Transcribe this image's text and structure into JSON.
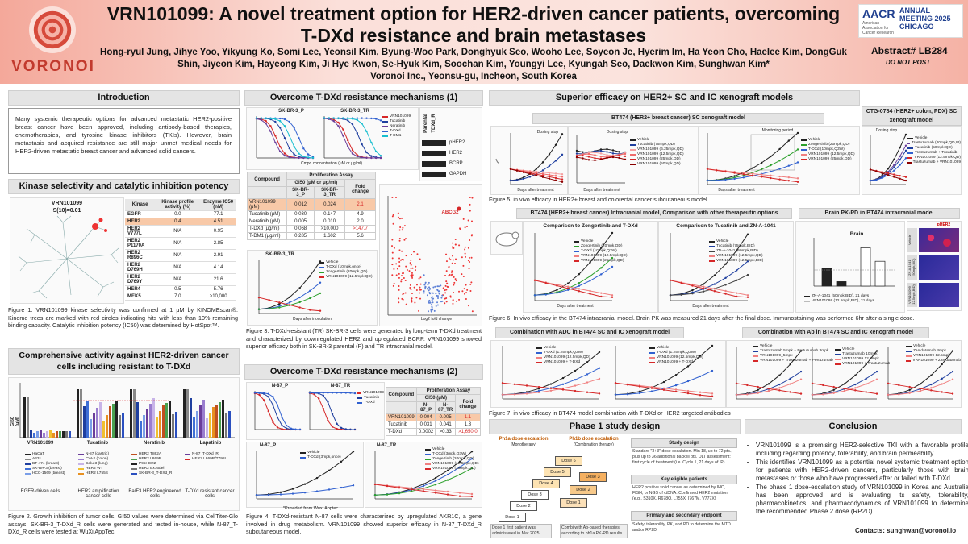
{
  "header": {
    "logo_text": "VORONOI",
    "title": "VRN101099: A novel treatment option for HER2-driven cancer patients, overcoming T-DXd resistance and brain metastases",
    "authors": "Hong-ryul Jung, Jihye Yoo, Yikyung Ko, Somi Lee, Yeonsil Kim, Byung-Woo Park, Donghyuk Seo, Wooho Lee, Soyeon Je, Hyerim Im, Ha Yeon Cho, Haelee Kim, DongGuk Shin, Jiyeon Kim, Hayeong Kim, Ji Hye Kwon, Se-Hyuk Kim, Soochan Kim, Youngyi Lee, Kyungah Seo, Daekwon Kim, Sunghwan Kim*",
    "affiliation": "Voronoi Inc., Yeonsu-gu, Incheon, South Korea",
    "aacr_a": "AACR",
    "aacr_sub": "American Association for Cancer Research",
    "aacr_r": "ANNUAL MEETING 2025 CHICAGO",
    "abstract": "Abstract# LB284",
    "do_not_post": "DO NOT POST"
  },
  "intro": {
    "heading": "Introduction",
    "text": "Many systemic therapeutic options for advanced metastatic HER2-positive breast cancer have been approved, including antibody-based therapies, chemotherapies, and tyrosine kinase inhibitors (TKIs). However, brain metastasis and acquired resistance are still major unmet medical needs for HER2-driven metastatic breast cancer and advanced solid cancers."
  },
  "kinase": {
    "heading": "Kinase selectivity and catalytic inhibition potency",
    "tree_label": "VRN101099",
    "tree_sub": "S(10)=0.01",
    "headers": [
      "Kinase",
      "Kinase profile activity (%)",
      "Enzyme IC50 (nM)"
    ],
    "rows": [
      [
        "EGFR",
        "0.0",
        "77.1"
      ],
      [
        "HER2",
        "0.4",
        "4.51"
      ],
      [
        "HER2 V777L",
        "N/A",
        "0.95"
      ],
      [
        "HER2 P1170A",
        "N/A",
        "2.85"
      ],
      [
        "HER2 R896C",
        "N/A",
        "2.91"
      ],
      [
        "HER2 D769H",
        "N/A",
        "4.14"
      ],
      [
        "HER2 D769Y",
        "N/A",
        "21.6"
      ],
      [
        "HER4",
        "0.5",
        "5.76"
      ],
      [
        "MEK5",
        "7.0",
        ">10,000"
      ]
    ],
    "caption": "Figure 1. VRN101099 kinase selectivity was confirmed at 1 μM by KINOMEscan®. Kinome trees are marked with red circles indicating hits with less than 10% remaining binding capacity. Catalytic inhibition potency (IC50) was determined by HotSpot™."
  },
  "activity": {
    "heading": "Comprehensive activity against HER2-driven cancer cells including resistant to T-DXd",
    "groups": [
      "VRN101099",
      "Tucatinib",
      "Neratinib",
      "Lapatinib"
    ],
    "ylabel": "GI50 (μM)",
    "categories": [
      "EGFR-driven cells",
      "HER2 amplification cancer cells",
      "Ba/F3 HER2 engineered cells",
      "T-DXd resistant cancer cells"
    ],
    "legend": [
      "HaCaT",
      "A431",
      "BT-474 (breast)",
      "SK-BR-3 (breast)",
      "HCC-1569 (breast)",
      "N-87 (gastric)",
      "CW-2 (colon)",
      "Calu-3 (lung)",
      "HER2 WT",
      "HER2 L755S",
      "HER2 T862A",
      "HER2 L869R",
      "P95HER2",
      "HER2 Ex16del",
      "SK-BR-3_T-DXd_R",
      "N-87_T-DXd_R",
      "HER2 L869R/T798I"
    ],
    "caption": "Figure 2. Growth inhibition of tumor cells, GI50 values were determined via CellTiter-Glo assays. SK-BR-3_T-DXd_R cells were generated and tested in-house, while N-87_T-DXd_R cells were tested at WuXi AppTec."
  },
  "resist1": {
    "heading": "Overcome T-DXd resistance mechanisms (1)",
    "panel_a": "SK-BR-3_P",
    "panel_b": "SK-BR-3_TR",
    "legend": [
      "VRN101099",
      "Tucatinib",
      "Neratinib",
      "T-DXd",
      "T-DM1"
    ],
    "x_label": "Cmpd concentration (μM or μg/ml)",
    "y_label": "Normalized Proliferation (%)",
    "blot_cols": [
      "Parental",
      "TDXd_R"
    ],
    "blot_rows": [
      "pHER2",
      "HER2",
      "BCRP",
      "GAPDH"
    ],
    "table_title": "Proliferation Assay",
    "table_sub": "GI50 (μM or μg/ml)",
    "table_head": [
      "Compound",
      "SK-BR-3_P",
      "SK-BR-3_TR",
      "Fold change"
    ],
    "table_rows": [
      [
        "VRN101099 (μM)",
        "0.012",
        "0.024",
        "2.1"
      ],
      [
        "Tucatinib (μM)",
        "0.030",
        "0.147",
        "4.9"
      ],
      [
        "Neratinib (μM)",
        "0.005",
        "0.010",
        "2.0"
      ],
      [
        "T-DXd (μg/ml)",
        "0.068",
        ">10.000",
        ">147.7"
      ],
      [
        "T-DM1 (μg/ml)",
        "0.285",
        "1.602",
        "5.6"
      ]
    ],
    "tr_title": "SK-BR-3_TR",
    "tr_legend": [
      "Vehicle",
      "T-DXd (10mpk,once)",
      "Zongertinib (20mpk,QD)",
      "VRN101099 (12.5mpk,QD)"
    ],
    "tr_xlabel": "Days after inoculation",
    "tr_ylabel": "Relative Luminescence Signal",
    "volcano_x": "Log2 fold change",
    "volcano_gene": "ABCG2",
    "caption": "Figure 3. T-DXd-resistant (TR) SK-BR-3 cells were generated by long-term T-DXd treatment and characterized by downregulated HER2 and upregulated BCRP. VRN101099 showed superior efficacy both in SK-BR-3 parental (P) and TR intracranial model."
  },
  "resist2": {
    "heading": "Overcome T-DXd resistance mechanisms (2)",
    "panel_a": "N-87_P",
    "panel_b": "N-87_TR",
    "legend": [
      "VRN101099",
      "Tucatinib",
      "T-DXd"
    ],
    "table_title": "Proliferation Assay",
    "table_sub": "GI50 (μM)",
    "table_head": [
      "Compound",
      "N-87_P",
      "N-87_TR",
      "Fold change"
    ],
    "table_rows": [
      [
        "VRN101099",
        "0.004",
        "0.005",
        "1.1"
      ],
      [
        "Tucatinib",
        "0.031",
        "0.041",
        "1.3"
      ],
      [
        "T-DXd",
        "0.0002",
        ">0.33",
        ">1,650.0"
      ]
    ],
    "p_legend": [
      "Vehicle",
      "T-DXd (3mpk,once)"
    ],
    "tr_legend": [
      "Vehicle",
      "T-DXd (3mpk,Q3W)",
      "Zongertinib (20mpk,QD)",
      "VRN101099 (12.5mpk,QD)",
      "VRN101099 (25mpk,QD)"
    ],
    "y_label": "Tumor volume (mm3)",
    "x_label": "Days after treatment",
    "provided": "*Provided from Wuxi Apptec",
    "caption": "Figure 4. T-DXd-resistant N-87 cells were characterized by upregulated AKR1C, a gene involved in drug metabolism. VRN101099 showed superior efficacy in N-87_T-DXd_R subcutaneous model."
  },
  "xeno": {
    "heading": "Superior efficacy on HER2+ SC and IC xenograft models",
    "bt474_title": "BT474 (HER2+ breast cancer) SC xenograft model",
    "ctg_title": "CTG-0784 (HER2+ colon, PDX) SC xenograft model",
    "dosing_stop": "Dosing stop",
    "monitoring": "Monitoring period",
    "bt474_legend1": [
      "Vehicle",
      "Tucatinib (75mpk,QD)",
      "VRN101099 (6.25mpk,QD)",
      "VRN101099 (12.5mpk,QD)",
      "VRN101099 (25mpk,QD)",
      "VRN101099 (50mpk,QD)"
    ],
    "bt474_legend2": [
      "Vehicle",
      "Zongertinib (20mpk,QD)",
      "T-DXd (10mpk,Q3W)",
      "VRN101099 (12.5mpk,QD)",
      "VRN101099 (25mpk,QD)"
    ],
    "ctg_legend": [
      "Vehicle",
      "Trastuzumab (20mpk,QD,IP)",
      "Tucatinib (50mpk,QD)",
      "Trastuzumab + Tucatinib",
      "VRN101099 (12.5mpk,QD)",
      "Trastuzumab + VRN101099"
    ],
    "y_tv": "Tumor Volume (mm3)",
    "y_bw": "Body Weight (g)",
    "x_days": "Days after treatment",
    "cap5": "Figure 5. in vivo efficacy in HER2+ breast and colorectal cancer subcutaneous model",
    "ic_title": "BT474 (HER2+ breast cancer) Intracranial model, Comparison with other therapeutic options",
    "zong_title": "Comparison to Zongertinib and T-DXd",
    "zong_legend": [
      "Vehicle",
      "Zongertinib (20mpk,QD)",
      "T-DXd (10mpk,Q3W)",
      "VRN101099 (12.5mpk,QD)",
      "VRN101099 (25mpk,QD)"
    ],
    "tuca_title": "Comparison to Tucatinib and ZN-A-1041",
    "tuca_legend": [
      "Vehicle",
      "Tucatinib (75mpk,BID)",
      "ZN-A-1041 (50mpk,BID)",
      "VRN101099 (12.5mpk,QD)",
      "VRN101099 (12.5mpk,BID)"
    ],
    "y_lum": "Relative Luminescence Signal",
    "pk_title": "Brain PK-PD in BT474 intracranial model",
    "pk_sub": "Brain",
    "pk_ylabel": "Brain exposure / BT474 GI50",
    "pk_legend": [
      "ZN-A-1041 (50mpk,BID), 21 days",
      "VRN101099 (12.5mpk,BID), 21 days"
    ],
    "pk_ticks": [
      "7",
      "24",
      "7",
      "24",
      "hr"
    ],
    "stain_labels": [
      "Vehicle",
      "ZN-A-1041 (50mpk,BID)",
      "VRN101099 (12.5mpk,BID)"
    ],
    "stain_marker": "pHER2",
    "cap6": "Figure 6. In vivo efficacy in the BT474 intracranial model. Brain PK was measured 21 days after the final dose. Immunostaining was performed 6hr after a single dose.",
    "adc_title": "Combination with ADC in BT474 SC and IC xenograft model",
    "adc_legend": [
      "Vehicle",
      "T-DXd (1.25mpk,Q3W)",
      "VRN101099 (12.5mpk,QD)",
      "VRN101099 + T-DXd"
    ],
    "ab_title": "Combination with Ab in BT474 SC and IC xenograft model",
    "ab_legend_a": [
      "Vehicle",
      "Trastuzumab 5mpk + Pertuzumab 3mpk",
      "VRN101099_5mpk",
      "VRN101099 + Trastuzumab + Pertuzumab"
    ],
    "ab_legend_b": [
      "Vehicle",
      "Trastuzumab 10mpk",
      "VRN101099 12.5mpk",
      "VRN101099 + Trastuzumab"
    ],
    "ab_legend_c": [
      "Vehicle",
      "Zanidatamab 4mpk",
      "VRN101099 12.5mpk",
      "VRN101099 + Zanidatamab"
    ],
    "cap7": "Figure 7. in vivo efficacy in BT474 model combination with T-DXd or HER2 targeted antibodies"
  },
  "phase1": {
    "heading": "Phase 1 study design",
    "ph1a": "Ph1a dose escalation",
    "ph1a_sub": "(Monotherapy)",
    "ph1b": "Ph1b dose escalation",
    "ph1b_sub": "(Combination therapy)",
    "doses": [
      "Dose 1",
      "Dose 2",
      "Dose 3",
      "Dose 4",
      "Dose 5",
      "Dose 6",
      "Dose 3",
      "Dose 2",
      "Dose 1"
    ],
    "note_a": "Dose 1 first patient was administered in Mar 2025",
    "note_b": "Combi with Ab-based therapies according to ph1a PK-PD results",
    "design_h": "Study design",
    "design_t": "Standard \"3+3\" dose escalation. Min 18, up to 72 pts., plus up to 36 additional backfill pts. DLT assessment: first cycle of treatment (i.e. Cycle 1, 21 days of IP)",
    "elig_h": "Key eligible patients",
    "elig_t": "HER2 positive solid cancer as determined by IHC, FISH, or NGS of ctDNA. Confirmed HER2 mutation (e.g., S310X, R678Q, L755X, I767M, V777X)",
    "end_h": "Primary and secondary endpoint",
    "end_t": "Safety, tolerability, PK, and PD to determine the MTD and/or RP2D"
  },
  "conclusion": {
    "heading": "Conclusion",
    "bullets": [
      "VRN101099 is a promising HER2-selective TKI with a favorable profile including regarding potency, tolerability, and brain permeability.",
      "This identifies VRN101099 as a potential novel systemic treatment option for patients with HER2-driven cancers, particularly those with brain metastases or those who have progressed after or failed with T-DXd.",
      "The phase 1 dose-escalation study of VRN101099 in Korea and Australia has been approved and is evaluating its safety, tolerability, pharmacokinetics, and pharmacodynamics of VRN101099 to determine the recommended Phase 2 dose (RP2D)."
    ],
    "contact": "Contacts: sunghwan@voronoi.io"
  },
  "colors": {
    "vehicle": "#222222",
    "vrn": "#d62728",
    "vrn_light": "#f08080",
    "tucatinib": "#1f3f9f",
    "tdxd": "#3060d0",
    "zong": "#2ca02c",
    "neratinib": "#6a3d9a",
    "tdm1": "#17becf"
  }
}
